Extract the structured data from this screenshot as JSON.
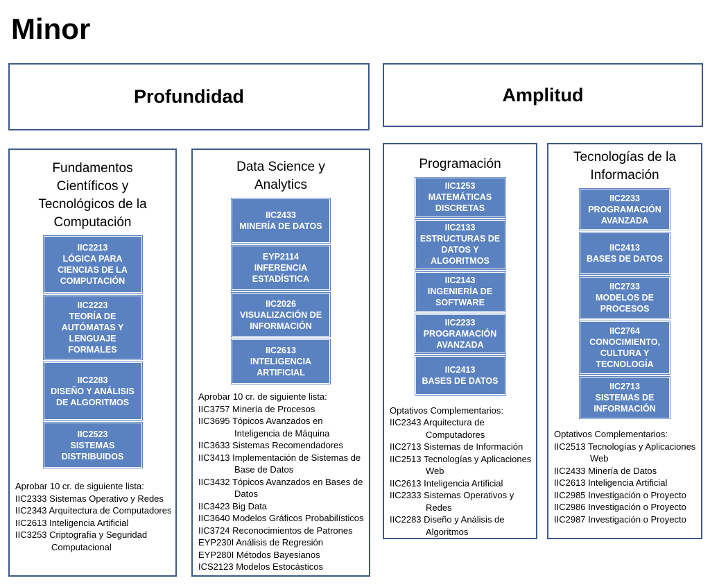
{
  "title": "Minor",
  "groups": [
    "Profundidad",
    "Amplitud"
  ],
  "columns": [
    {
      "title": "Fundamentos Científicos y Tecnológicos de la Computación",
      "courses": [
        {
          "code": "IIC2213",
          "name": "LÓGICA PARA CIENCIAS DE LA COMPUTACIÓN"
        },
        {
          "code": "IIC2223",
          "name": "TEORÍA DE AUTÓMATAS Y LENGUAJE FORMALES"
        },
        {
          "code": "IIC2283",
          "name": "DISEÑO Y ANÁLISIS DE ALGORITMOS"
        },
        {
          "code": "IIC2523",
          "name": "SISTEMAS DISTRIBUIDOS"
        }
      ],
      "list_title": "Aprobar 10 cr. de siguiente lista:",
      "list": [
        {
          "code": "IIC2333",
          "name": "Sistemas Operativo y Redes"
        },
        {
          "code": "IIC2343",
          "name": "Arquitectura de Computadores"
        },
        {
          "code": "IIC2613",
          "name": "Inteligencia Artificial"
        },
        {
          "code": "IIC3253",
          "name": "Criptografía y Seguridad Computacional"
        }
      ]
    },
    {
      "title": "Data Science y Analytics",
      "courses": [
        {
          "code": "IIC2433",
          "name": "MINERÍA DE DATOS"
        },
        {
          "code": "EYP2114",
          "name": "INFERENCIA ESTADÍSTICA"
        },
        {
          "code": "IIC2026",
          "name": "VISUALIZACIÓN DE INFORMACIÓN"
        },
        {
          "code": "IIC2613",
          "name": "INTELIGENCIA ARTIFICIAL"
        }
      ],
      "list_title": "Aprobar 10 cr. de siguiente lista:",
      "list": [
        {
          "code": "IIC3757",
          "name": "Minería de Procesos"
        },
        {
          "code": "IIC3695",
          "name": "Tópicos Avanzados en Inteligencia de Máquina"
        },
        {
          "code": "IIC3633",
          "name": "Sistemas Recomendadores"
        },
        {
          "code": "IIC3413",
          "name": "Implementación de Sistemas de Base de Datos"
        },
        {
          "code": "IIC3432",
          "name": "Tópicos Avanzados en Bases de Datos"
        },
        {
          "code": "IIC3423",
          "name": "Big Data"
        },
        {
          "code": "IIC3640",
          "name": "Modelos Gráficos Probabilísticos"
        },
        {
          "code": "IIC3724",
          "name": "Reconocimientos de Patrones"
        },
        {
          "code": "EYP230I",
          "name": "Análisis de Regresión"
        },
        {
          "code": "EYP280I",
          "name": "Métodos Bayesianos"
        },
        {
          "code": "ICS2123",
          "name": "Modelos Estocásticos"
        }
      ]
    },
    {
      "title": "Programación",
      "courses": [
        {
          "code": "IIC1253",
          "name": "MATEMÁTICAS DISCRETAS"
        },
        {
          "code": "IIC2133",
          "name": "ESTRUCTURAS DE DATOS Y ALGORITMOS"
        },
        {
          "code": "IIC2143",
          "name": "INGENIERÍA DE SOFTWARE"
        },
        {
          "code": "IIC2233",
          "name": "PROGRAMACIÓN AVANZADA"
        },
        {
          "code": "IIC2413",
          "name": "BASES DE DATOS"
        }
      ],
      "list_title": "Optativos Complementarios:",
      "list": [
        {
          "code": "IIC2343",
          "name": "Arquitectura de Computadores"
        },
        {
          "code": "IIC2713",
          "name": "Sistemas de Información"
        },
        {
          "code": "IIC2513",
          "name": "Tecnologías y Aplicaciones Web"
        },
        {
          "code": "IIC2613",
          "name": "Inteligencia Artificial"
        },
        {
          "code": "IIC2333",
          "name": "Sistemas Operativos y Redes"
        },
        {
          "code": "IIC2283",
          "name": "Diseño y Análisis de Algoritmos"
        }
      ]
    },
    {
      "title": "Tecnologías de la Información",
      "courses": [
        {
          "code": "IIC2233",
          "name": "PROGRAMACIÓN AVANZADA"
        },
        {
          "code": "IIC2413",
          "name": "BASES DE DATOS"
        },
        {
          "code": "IIC2733",
          "name": "MODELOS DE PROCESOS"
        },
        {
          "code": "IIC2764",
          "name": "CONOCIMIENTO, CULTURA Y TECNOLOGÍA"
        },
        {
          "code": "IIC2713",
          "name": "SISTEMAS DE INFORMACIÓN"
        }
      ],
      "list_title": "Optativos Complementarios:",
      "list": [
        {
          "code": "IIC2513",
          "name": "Tecnologías y Aplicaciones Web"
        },
        {
          "code": "IIC2433",
          "name": "Minería de Datos"
        },
        {
          "code": "IIC2613",
          "name": "Inteligencia Artificial"
        },
        {
          "code": "IIC2985",
          "name": "Investigación o Proyecto"
        },
        {
          "code": "IIC2986",
          "name": "Investigación o Proyecto"
        },
        {
          "code": "IIC2987",
          "name": "Investigación o Proyecto"
        }
      ]
    }
  ]
}
